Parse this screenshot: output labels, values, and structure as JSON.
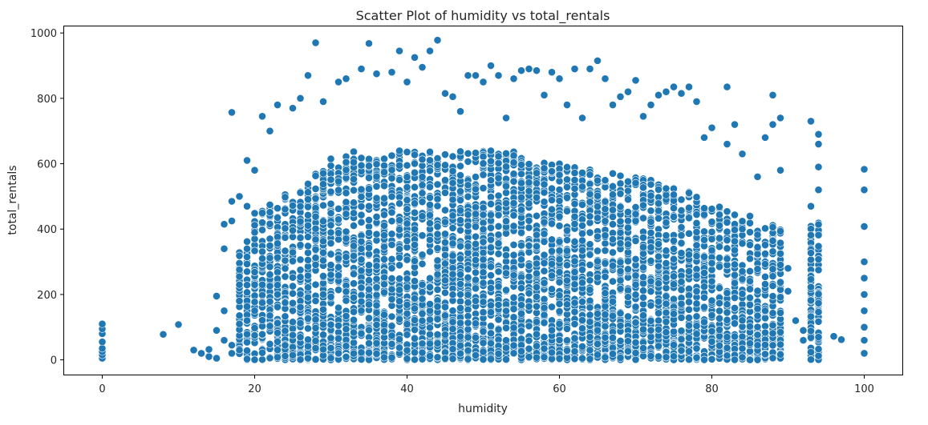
{
  "chart_data": {
    "type": "scatter",
    "title": "Scatter Plot of humidity vs total_rentals",
    "xlabel": "humidity",
    "ylabel": "total_rentals",
    "xlim": [
      -5,
      105
    ],
    "ylim": [
      -45,
      1020
    ],
    "xticks": [
      0,
      20,
      40,
      60,
      80,
      100
    ],
    "yticks": [
      0,
      200,
      400,
      600,
      800,
      1000
    ],
    "grid": false,
    "marker_color": "#1f77b4",
    "marker_edge_color": "#ffffff",
    "points_note": "Dense scatter with values densest between humidity 25-90 and rentals 0-600. Representative sampled points listed; density is dominated by hourly data.",
    "points": [
      {
        "x": 0,
        "y": 5
      },
      {
        "x": 0,
        "y": 15
      },
      {
        "x": 0,
        "y": 25
      },
      {
        "x": 0,
        "y": 35
      },
      {
        "x": 0,
        "y": 55
      },
      {
        "x": 0,
        "y": 80
      },
      {
        "x": 0,
        "y": 95
      },
      {
        "x": 0,
        "y": 110
      },
      {
        "x": 8,
        "y": 78
      },
      {
        "x": 10,
        "y": 108
      },
      {
        "x": 12,
        "y": 30
      },
      {
        "x": 13,
        "y": 20
      },
      {
        "x": 14,
        "y": 10
      },
      {
        "x": 14,
        "y": 32
      },
      {
        "x": 15,
        "y": 5
      },
      {
        "x": 15,
        "y": 90
      },
      {
        "x": 15,
        "y": 195
      },
      {
        "x": 16,
        "y": 60
      },
      {
        "x": 16,
        "y": 150
      },
      {
        "x": 16,
        "y": 340
      },
      {
        "x": 16,
        "y": 415
      },
      {
        "x": 17,
        "y": 20
      },
      {
        "x": 17,
        "y": 45
      },
      {
        "x": 17,
        "y": 425
      },
      {
        "x": 17,
        "y": 485
      },
      {
        "x": 17,
        "y": 757
      },
      {
        "x": 18,
        "y": 110
      },
      {
        "x": 18,
        "y": 180
      },
      {
        "x": 18,
        "y": 230
      },
      {
        "x": 18,
        "y": 500
      },
      {
        "x": 19,
        "y": 120
      },
      {
        "x": 19,
        "y": 340
      },
      {
        "x": 19,
        "y": 470
      },
      {
        "x": 19,
        "y": 610
      },
      {
        "x": 20,
        "y": 75
      },
      {
        "x": 20,
        "y": 230
      },
      {
        "x": 20,
        "y": 390
      },
      {
        "x": 20,
        "y": 580
      },
      {
        "x": 21,
        "y": 745
      },
      {
        "x": 22,
        "y": 700
      },
      {
        "x": 23,
        "y": 780
      },
      {
        "x": 25,
        "y": 770
      },
      {
        "x": 26,
        "y": 800
      },
      {
        "x": 27,
        "y": 870
      },
      {
        "x": 28,
        "y": 970
      },
      {
        "x": 29,
        "y": 790
      },
      {
        "x": 31,
        "y": 850
      },
      {
        "x": 32,
        "y": 860
      },
      {
        "x": 34,
        "y": 890
      },
      {
        "x": 35,
        "y": 968
      },
      {
        "x": 36,
        "y": 875
      },
      {
        "x": 38,
        "y": 880
      },
      {
        "x": 39,
        "y": 945
      },
      {
        "x": 40,
        "y": 850
      },
      {
        "x": 41,
        "y": 925
      },
      {
        "x": 42,
        "y": 895
      },
      {
        "x": 43,
        "y": 945
      },
      {
        "x": 44,
        "y": 978
      },
      {
        "x": 45,
        "y": 815
      },
      {
        "x": 46,
        "y": 805
      },
      {
        "x": 47,
        "y": 760
      },
      {
        "x": 48,
        "y": 870
      },
      {
        "x": 49,
        "y": 870
      },
      {
        "x": 50,
        "y": 850
      },
      {
        "x": 51,
        "y": 900
      },
      {
        "x": 52,
        "y": 870
      },
      {
        "x": 53,
        "y": 740
      },
      {
        "x": 54,
        "y": 860
      },
      {
        "x": 55,
        "y": 885
      },
      {
        "x": 56,
        "y": 890
      },
      {
        "x": 57,
        "y": 885
      },
      {
        "x": 58,
        "y": 810
      },
      {
        "x": 59,
        "y": 880
      },
      {
        "x": 60,
        "y": 860
      },
      {
        "x": 61,
        "y": 780
      },
      {
        "x": 62,
        "y": 890
      },
      {
        "x": 63,
        "y": 740
      },
      {
        "x": 64,
        "y": 890
      },
      {
        "x": 65,
        "y": 915
      },
      {
        "x": 66,
        "y": 860
      },
      {
        "x": 67,
        "y": 780
      },
      {
        "x": 68,
        "y": 805
      },
      {
        "x": 69,
        "y": 820
      },
      {
        "x": 70,
        "y": 855
      },
      {
        "x": 71,
        "y": 745
      },
      {
        "x": 72,
        "y": 780
      },
      {
        "x": 73,
        "y": 810
      },
      {
        "x": 74,
        "y": 820
      },
      {
        "x": 75,
        "y": 835
      },
      {
        "x": 76,
        "y": 815
      },
      {
        "x": 77,
        "y": 835
      },
      {
        "x": 78,
        "y": 790
      },
      {
        "x": 79,
        "y": 680
      },
      {
        "x": 80,
        "y": 710
      },
      {
        "x": 82,
        "y": 835
      },
      {
        "x": 82,
        "y": 660
      },
      {
        "x": 83,
        "y": 720
      },
      {
        "x": 84,
        "y": 630
      },
      {
        "x": 85,
        "y": 440
      },
      {
        "x": 86,
        "y": 560
      },
      {
        "x": 87,
        "y": 680
      },
      {
        "x": 88,
        "y": 810
      },
      {
        "x": 88,
        "y": 720
      },
      {
        "x": 89,
        "y": 740
      },
      {
        "x": 89,
        "y": 580
      },
      {
        "x": 90,
        "y": 280
      },
      {
        "x": 90,
        "y": 210
      },
      {
        "x": 91,
        "y": 120
      },
      {
        "x": 92,
        "y": 90
      },
      {
        "x": 92,
        "y": 60
      },
      {
        "x": 93,
        "y": 730
      },
      {
        "x": 93,
        "y": 470
      },
      {
        "x": 94,
        "y": 690
      },
      {
        "x": 94,
        "y": 660
      },
      {
        "x": 94,
        "y": 590
      },
      {
        "x": 94,
        "y": 520
      },
      {
        "x": 96,
        "y": 72
      },
      {
        "x": 97,
        "y": 62
      },
      {
        "x": 100,
        "y": 583
      },
      {
        "x": 100,
        "y": 520
      },
      {
        "x": 100,
        "y": 408
      },
      {
        "x": 100,
        "y": 300
      },
      {
        "x": 100,
        "y": 250
      },
      {
        "x": 100,
        "y": 200
      },
      {
        "x": 100,
        "y": 150
      },
      {
        "x": 100,
        "y": 100
      },
      {
        "x": 100,
        "y": 60
      },
      {
        "x": 100,
        "y": 20
      }
    ]
  }
}
